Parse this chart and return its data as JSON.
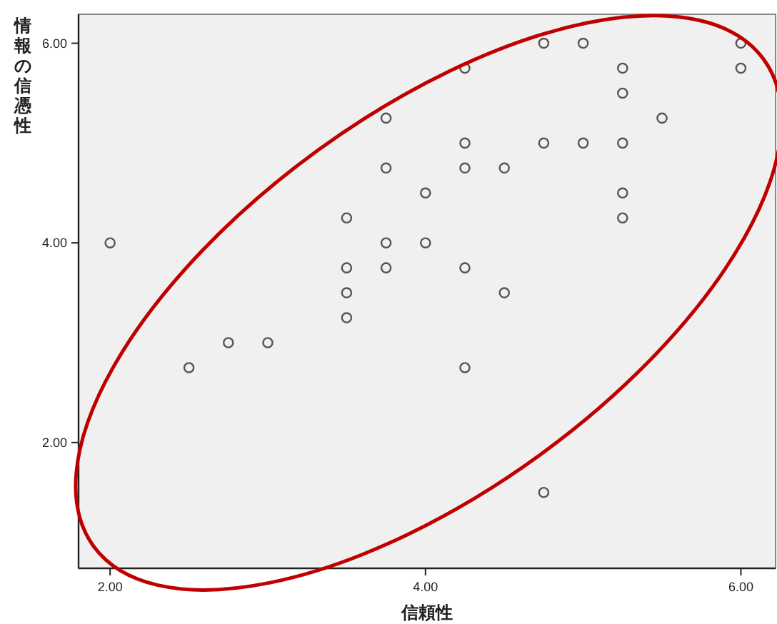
{
  "chart_data": {
    "type": "scatter",
    "xlabel": "信頼性",
    "ylabel": "情報の信憑性",
    "xlim": [
      1.8,
      6.22
    ],
    "ylim": [
      0.74,
      6.29
    ],
    "xticks": [
      {
        "value": 2,
        "label": "2.00"
      },
      {
        "value": 4,
        "label": "4.00"
      },
      {
        "value": 6,
        "label": "6.00"
      }
    ],
    "yticks": [
      {
        "value": 2,
        "label": "2.00"
      },
      {
        "value": 4,
        "label": "4.00"
      },
      {
        "value": 6,
        "label": "6.00"
      }
    ],
    "marker": "circle",
    "grid": false,
    "series": [
      {
        "color": "#555555",
        "x": [
          2.0,
          2.5,
          2.75,
          3.0,
          3.5,
          3.5,
          3.5,
          3.5,
          3.75,
          3.75,
          3.75,
          3.75,
          4.0,
          4.0,
          4.25,
          4.25,
          4.25,
          4.25,
          4.25,
          4.5,
          4.5,
          4.75,
          4.75,
          4.75,
          5.0,
          5.0,
          5.25,
          5.25,
          5.25,
          5.25,
          5.25,
          5.5,
          6.0,
          6.0
        ],
        "values": [
          4.0,
          2.75,
          3.0,
          3.0,
          4.25,
          3.75,
          3.5,
          3.25,
          5.25,
          4.75,
          4.0,
          3.75,
          4.5,
          4.0,
          5.75,
          5.0,
          4.75,
          3.75,
          2.75,
          4.75,
          3.5,
          6.0,
          5.0,
          1.5,
          6.0,
          5.0,
          5.75,
          5.5,
          5.0,
          4.5,
          4.25,
          5.25,
          6.0,
          5.75
        ]
      }
    ]
  }
}
